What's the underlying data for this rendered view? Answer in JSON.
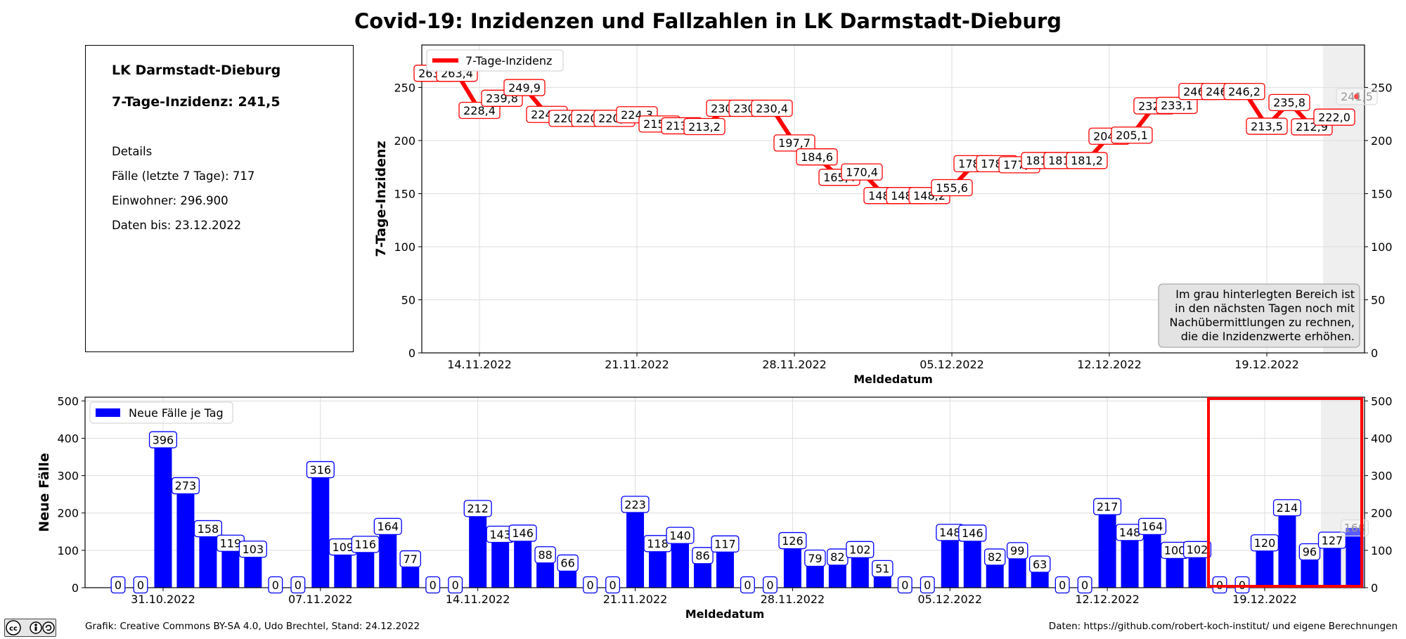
{
  "title": "Covid-19: Inzidenzen und Fallzahlen in LK Darmstadt-Dieburg",
  "info": {
    "location": "LK Darmstadt-Dieburg",
    "incidence_label": "7-Tage-Inzidenz: 241,5",
    "details_heading": "Details",
    "cases_7d": "Fälle (letzte 7 Tage): 717",
    "population": "Einwohner: 296.900",
    "data_until": "Daten bis: 23.12.2022"
  },
  "footer": {
    "left": "Grafik: Creative Commons BY-SA 4.0, Udo Brechtel, Stand: 24.12.2022",
    "right": "Daten: https://github.com/robert-koch-institut/ und eigene Berechnungen",
    "logo_text": "cc by sa"
  },
  "colors": {
    "line": "#ff0000",
    "bars": "#0000ff",
    "gray_area": "#efefef",
    "highlight": "#ff0000"
  },
  "chart_data": [
    {
      "type": "line",
      "name": "incidence",
      "legend": "7-Tage-Inzidenz",
      "xlabel": "Meldedatum",
      "ylabel": "7-Tage-Inzidenz",
      "ylim": [
        0,
        290
      ],
      "yticks": [
        0,
        50,
        100,
        150,
        200,
        250
      ],
      "grid": true,
      "legend_position": "top-left",
      "first_day_offset": 0,
      "xtick_days": [
        2,
        9,
        16,
        23,
        30,
        37
      ],
      "xtick_labels": [
        "14.11.2022",
        "21.11.2022",
        "28.11.2022",
        "05.12.2022",
        "12.12.2022",
        "19.12.2022"
      ],
      "values": [
        263.4,
        263.4,
        228.4,
        239.8,
        249.9,
        224.6,
        220.9,
        220.9,
        220.9,
        224.3,
        215.6,
        213.9,
        213.2,
        230.4,
        230.4,
        230.4,
        197.7,
        184.6,
        165.4,
        170.4,
        148.2,
        148.2,
        148.2,
        155.6,
        178.2,
        178.2,
        177.2,
        181.2,
        181.2,
        181.2,
        204.1,
        205.1,
        232.7,
        233.1,
        246.2,
        246.2,
        246.2,
        213.5,
        235.8,
        212.9,
        222.0,
        241.5
      ],
      "value_labels": [
        "263,4",
        "263,4",
        "228,4",
        "239,8",
        "249,9",
        "224,6",
        "220,9",
        "220,9",
        "220,9",
        "224,3",
        "215,6",
        "213,9",
        "213,2",
        "230,4",
        "230,4",
        "230,4",
        "197,7",
        "184,6",
        "165,4",
        "170,4",
        "148,2",
        "148,2",
        "148,2",
        "155,6",
        "178,2",
        "178,2",
        "177,2",
        "181,2",
        "181,2",
        "181,2",
        "204,1",
        "205,1",
        "232,7",
        "233,1",
        "246,2",
        "246,2",
        "246,2",
        "213,5",
        "235,8",
        "212,9",
        "222,0",
        "241,5"
      ],
      "gray_from_day": 39.5,
      "annotation": [
        "Im grau hinterlegten Bereich ist",
        "in den nächsten Tagen noch mit",
        "Nachübermittlungen zu rechnen,",
        "die die Inzidenzwerte erhöhen."
      ]
    },
    {
      "type": "bar",
      "name": "new_cases",
      "legend": "Neue Fälle je Tag",
      "xlabel": "Meldedatum",
      "ylabel": "Neue Fälle",
      "ylim": [
        0,
        510
      ],
      "yticks": [
        0,
        100,
        200,
        300,
        400,
        500
      ],
      "grid": true,
      "legend_position": "top-left",
      "xtick_days": [
        2,
        9,
        16,
        23,
        30,
        37,
        44,
        51
      ],
      "xtick_labels": [
        "31.10.2022",
        "07.11.2022",
        "14.11.2022",
        "21.11.2022",
        "28.11.2022",
        "05.12.2022",
        "12.12.2022",
        "19.12.2022"
      ],
      "values": [
        0,
        0,
        396,
        273,
        158,
        119,
        103,
        0,
        0,
        316,
        109,
        116,
        164,
        77,
        0,
        0,
        212,
        143,
        146,
        88,
        66,
        0,
        0,
        223,
        118,
        140,
        86,
        117,
        0,
        0,
        126,
        79,
        82,
        102,
        51,
        0,
        0,
        148,
        146,
        82,
        99,
        63,
        0,
        0,
        217,
        148,
        164,
        100,
        102,
        0,
        0,
        120,
        214,
        96,
        127,
        160
      ],
      "gray_from_day": 53.5,
      "highlight_from_day": 48.5
    }
  ]
}
